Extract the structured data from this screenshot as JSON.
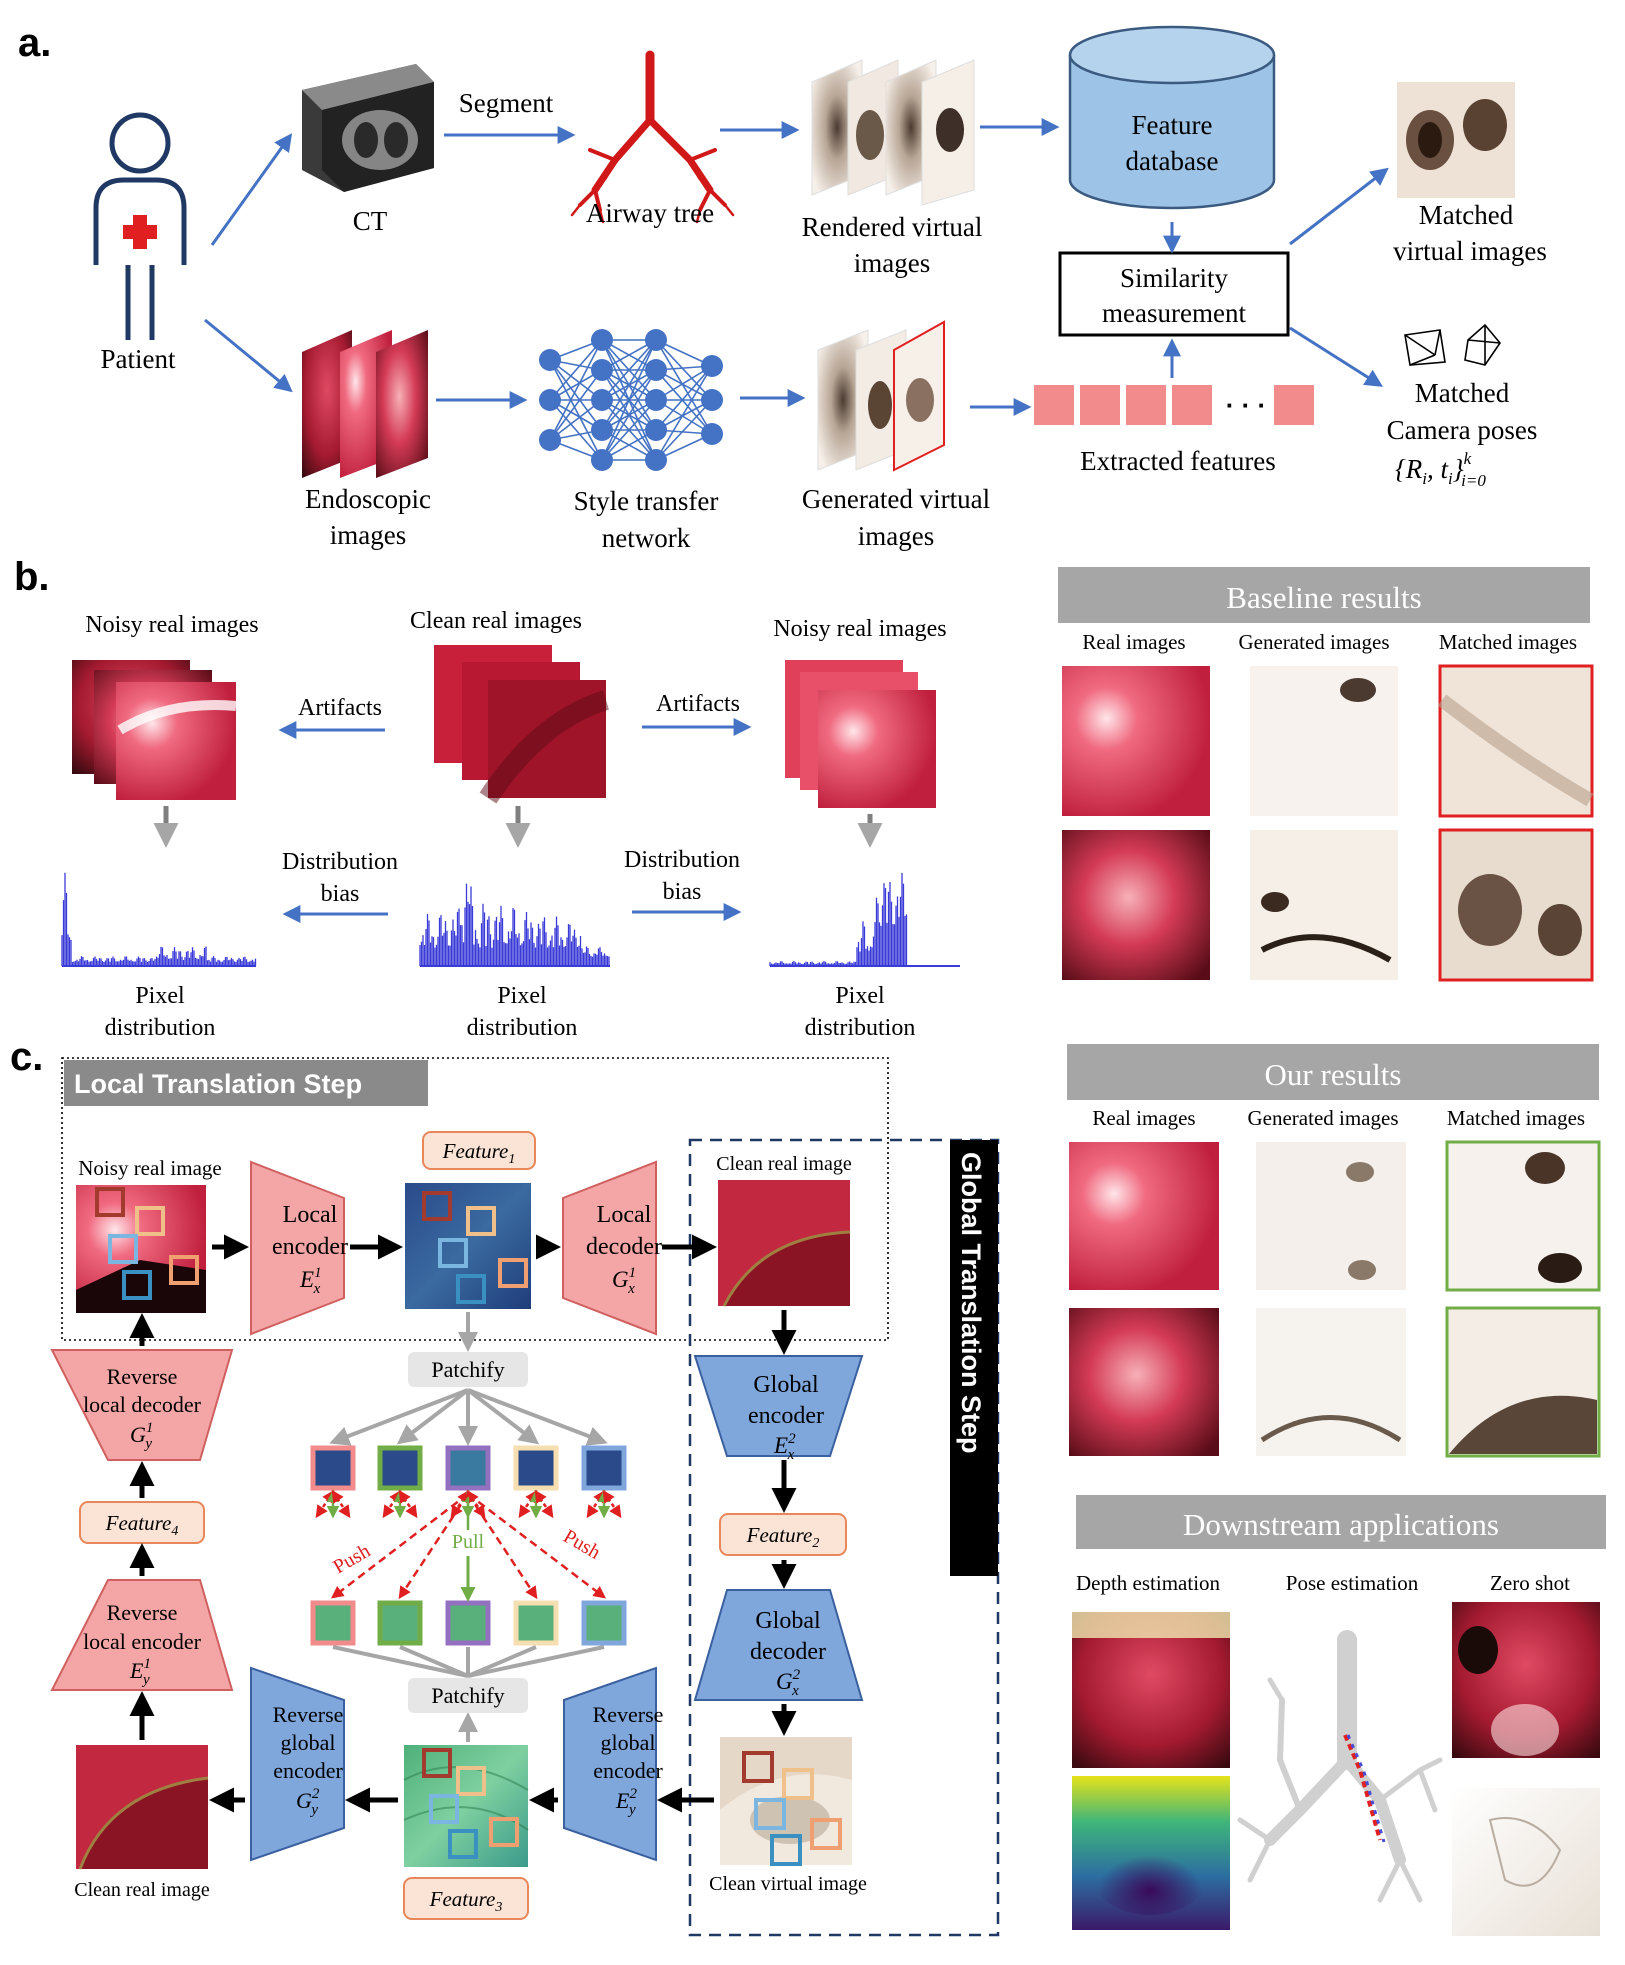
{
  "panel_labels": {
    "a": "a.",
    "b": "b.",
    "c": "c."
  },
  "panel_a": {
    "patient": "Patient",
    "ct": "CT",
    "segment": "Segment",
    "airway_tree": "Airway tree",
    "rendered_1": "Rendered  virtual",
    "rendered_2": "images",
    "feature_db_1": "Feature",
    "feature_db_2": "database",
    "similarity_1": "Similarity",
    "similarity_2": "measurement",
    "matched_virtual_1": "Matched",
    "matched_virtual_2": "virtual images",
    "endoscopic_1": "Endoscopic",
    "endoscopic_2": "images",
    "style_1": "Style transfer",
    "style_2": "network",
    "generated_1": "Generated virtual",
    "generated_2": "images",
    "extracted": "Extracted features",
    "ellipsis": "· · ·",
    "camera_1": "Matched",
    "camera_2": "Camera poses",
    "camera_3": "{R",
    "camera_3b": "i",
    "camera_3c": ", t",
    "camera_3d": "i",
    "camera_3e": "}",
    "camera_3f": "k",
    "camera_3g": "i=0"
  },
  "panel_b": {
    "noisy_left": "Noisy real images",
    "clean": "Clean real images",
    "noisy_right": "Noisy real images",
    "artifacts_left": "Artifacts",
    "artifacts_right": "Artifacts",
    "bias_left_1": "Distribution",
    "bias_left_2": "bias",
    "bias_right_1": "Distribution",
    "bias_right_2": "bias",
    "pixel_1": "Pixel",
    "pixel_2": "distribution"
  },
  "baseline": {
    "title": "Baseline results",
    "cols": [
      "Real images",
      "Generated images",
      "Matched images"
    ]
  },
  "ours": {
    "title": "Our results",
    "cols": [
      "Real images",
      "Generated images",
      "Matched images"
    ]
  },
  "downstream": {
    "title": "Downstream applications",
    "cols": [
      "Depth estimation",
      "Pose estimation",
      "Zero shot"
    ]
  },
  "panel_c": {
    "local_title": "Local Translation Step",
    "global_title": "Global Translation Step",
    "noisy_real_image": "Noisy real image",
    "clean_real_image_top": "Clean real image",
    "clean_real_image_bottom": "Clean real image",
    "clean_virtual_image": "Clean virtual image",
    "local_encoder": [
      "Local",
      "encoder"
    ],
    "local_encoder_sym": {
      "base": "E",
      "sub": "x",
      "sup": "1"
    },
    "local_decoder": [
      "Local",
      "decoder"
    ],
    "local_decoder_sym": {
      "base": "G",
      "sub": "x",
      "sup": "1"
    },
    "rev_local_decoder": [
      "Reverse",
      "local decoder"
    ],
    "rev_local_decoder_sym": {
      "base": "G",
      "sub": "y",
      "sup": "1"
    },
    "rev_local_encoder": [
      "Reverse",
      "local encoder"
    ],
    "rev_local_encoder_sym": {
      "base": "E",
      "sub": "y",
      "sup": "1"
    },
    "global_encoder": [
      "Global",
      "encoder"
    ],
    "global_encoder_sym": {
      "base": "E",
      "sub": "x",
      "sup": "2"
    },
    "global_decoder": [
      "Global",
      "decoder"
    ],
    "global_decoder_sym": {
      "base": "G",
      "sub": "x",
      "sup": "2"
    },
    "rev_global_encoder_l": [
      "Reverse",
      "global",
      "encoder"
    ],
    "rev_global_encoder_l_sym": {
      "base": "G",
      "sub": "y",
      "sup": "2"
    },
    "rev_global_encoder_r": [
      "Reverse",
      "global",
      "encoder"
    ],
    "rev_global_encoder_r_sym": {
      "base": "E",
      "sub": "y",
      "sup": "2"
    },
    "feature1": {
      "base": "Feature",
      "sub": "1"
    },
    "feature2": {
      "base": "Feature",
      "sub": "2"
    },
    "feature3": {
      "base": "Feature",
      "sub": "3"
    },
    "feature4": {
      "base": "Feature",
      "sub": "4"
    },
    "patchify": "Patchify",
    "push": "Push",
    "pull": "Pull"
  },
  "colors": {
    "arrow_blue": "#4472c4",
    "db_fill": "#9dc3e6",
    "red_trap": "#f4a6a6",
    "blue_trap": "#7fa7dc",
    "feature_box": "#fbe3d6",
    "feature_border": "#e8875a",
    "gray_header": "#a6a6a6",
    "green": "#70ad47",
    "red": "#e02020"
  }
}
